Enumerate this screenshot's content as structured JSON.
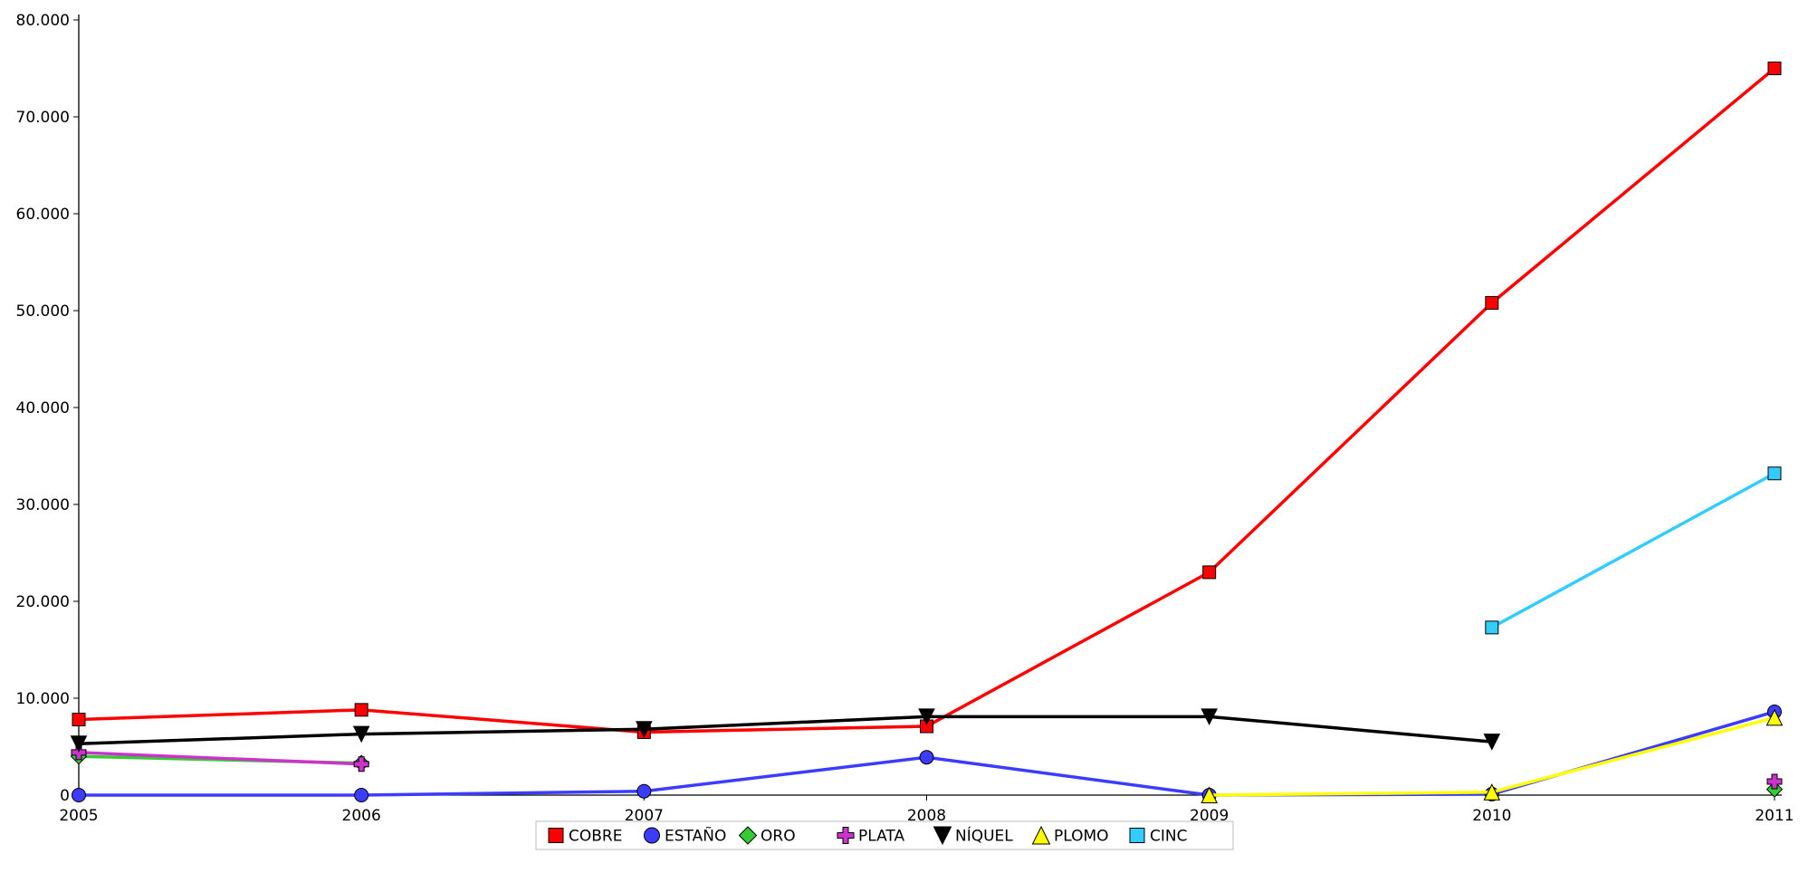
{
  "chart_data": {
    "type": "line",
    "title": "",
    "xlabel": "",
    "ylabel": "",
    "categories": [
      "2005",
      "2006",
      "2007",
      "2008",
      "2009",
      "2010",
      "2011"
    ],
    "ylim": [
      0,
      80000
    ],
    "yticks": [
      0,
      10000,
      20000,
      30000,
      40000,
      50000,
      60000,
      70000,
      80000
    ],
    "ytick_labels": [
      "0",
      "10.000",
      "20.000",
      "30.000",
      "40.000",
      "50.000",
      "60.000",
      "70.000",
      "80.000"
    ],
    "grid": false,
    "legend_position": "bottom",
    "series": [
      {
        "name": "COBRE",
        "color": "#ff0000",
        "marker": "square",
        "values": [
          7800,
          8800,
          6500,
          7100,
          23000,
          50800,
          75000
        ]
      },
      {
        "name": "ESTAÑO",
        "color": "#3c3cff",
        "marker": "circle",
        "values": [
          0,
          0,
          400,
          3900,
          0,
          100,
          8600
        ]
      },
      {
        "name": "ORO",
        "color": "#33cc33",
        "marker": "diamond",
        "values": [
          4000,
          3300,
          null,
          null,
          null,
          null,
          600
        ]
      },
      {
        "name": "PLATA",
        "color": "#cc33cc",
        "marker": "plus",
        "values": [
          4400,
          3200,
          null,
          null,
          null,
          null,
          1400
        ]
      },
      {
        "name": "NÍQUEL",
        "color": "#000000",
        "marker": "triangle-down",
        "values": [
          5300,
          6300,
          6800,
          8100,
          8100,
          5500,
          null
        ]
      },
      {
        "name": "PLOMO",
        "color": "#ffff00",
        "marker": "triangle-up",
        "values": [
          null,
          null,
          null,
          null,
          0,
          300,
          8000
        ]
      },
      {
        "name": "CINC",
        "color": "#33ccff",
        "marker": "square",
        "values": [
          null,
          null,
          null,
          null,
          null,
          17300,
          33200
        ]
      }
    ]
  }
}
